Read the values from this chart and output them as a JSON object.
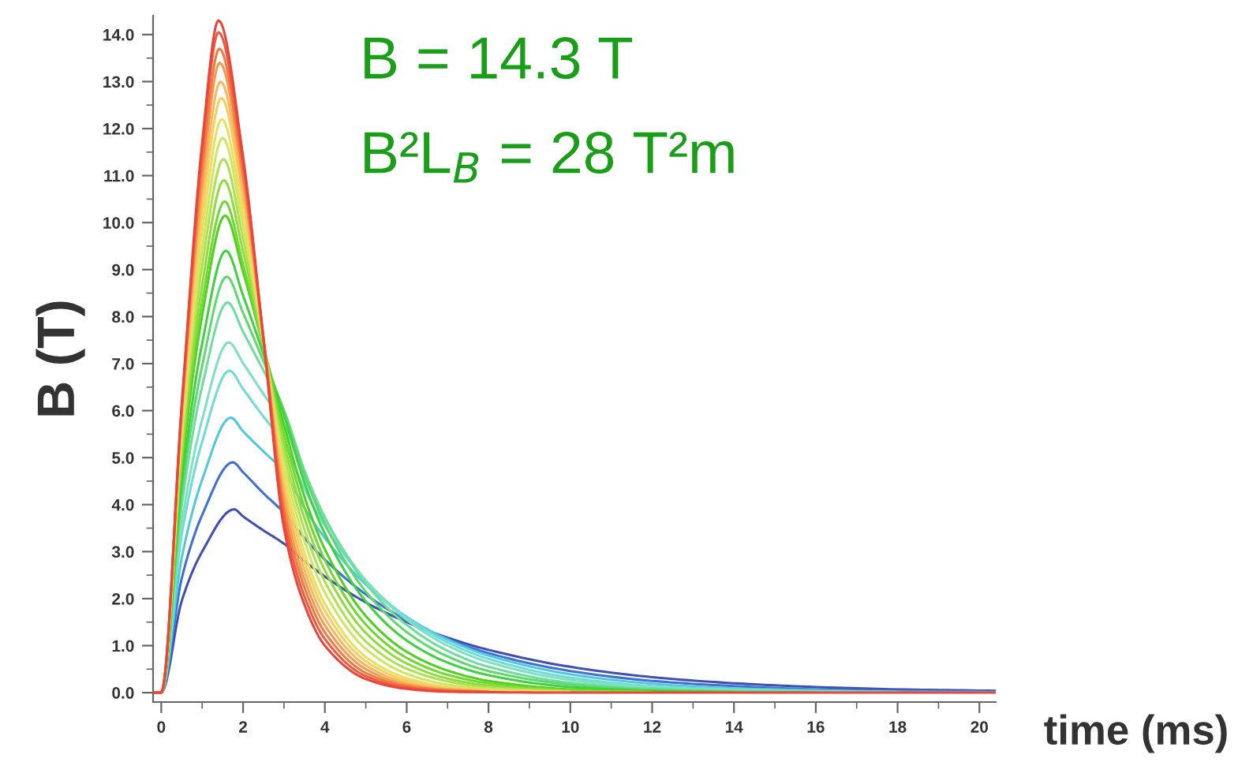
{
  "chart_data": {
    "type": "line",
    "xlabel": "time (ms)",
    "ylabel": "B (T)",
    "annotations": [
      "B = 14.3 T",
      "B²L$_{B}$ = 28 T²m"
    ],
    "xlim": [
      -0.2,
      20.4
    ],
    "ylim": [
      -0.2,
      14.4
    ],
    "xticks": [
      0,
      {
        "value": 1,
        "label": null
      },
      2,
      {
        "value": 3,
        "label": null
      },
      4,
      {
        "value": 5,
        "label": null
      },
      6,
      {
        "value": 7,
        "label": null
      },
      8,
      {
        "value": 9,
        "label": null
      },
      10,
      {
        "value": 11,
        "label": null
      },
      12,
      {
        "value": 13,
        "label": null
      },
      14,
      {
        "value": 15,
        "label": null
      },
      16,
      {
        "value": 17,
        "label": null
      },
      18,
      {
        "value": 19,
        "label": null
      },
      20
    ],
    "yticks": [
      {
        "value": 0,
        "label": "0.0"
      },
      {
        "value": 0.5,
        "label": null
      },
      {
        "value": 1,
        "label": "1.0"
      },
      {
        "value": 1.5,
        "label": null
      },
      {
        "value": 2,
        "label": "2.0"
      },
      {
        "value": 2.5,
        "label": null
      },
      {
        "value": 3,
        "label": "3.0"
      },
      {
        "value": 3.5,
        "label": null
      },
      {
        "value": 4,
        "label": "4.0"
      },
      {
        "value": 4.5,
        "label": null
      },
      {
        "value": 5,
        "label": "5.0"
      },
      {
        "value": 5.5,
        "label": null
      },
      {
        "value": 6,
        "label": "6.0"
      },
      {
        "value": 6.5,
        "label": null
      },
      {
        "value": 7,
        "label": "7.0"
      },
      {
        "value": 7.5,
        "label": null
      },
      {
        "value": 8,
        "label": "8.0"
      },
      {
        "value": 8.5,
        "label": null
      },
      {
        "value": 9,
        "label": "9.0"
      },
      {
        "value": 9.5,
        "label": null
      },
      {
        "value": 10,
        "label": "10.0"
      },
      {
        "value": 10.5,
        "label": null
      },
      {
        "value": 11,
        "label": "11.0"
      },
      {
        "value": 11.5,
        "label": null
      },
      {
        "value": 12,
        "label": "12.0"
      },
      {
        "value": 12.5,
        "label": null
      },
      {
        "value": 13,
        "label": "13.0"
      },
      {
        "value": 13.5,
        "label": null
      },
      {
        "value": 14,
        "label": "14.0"
      }
    ],
    "grid": false,
    "legend": false,
    "series": [
      {
        "color": "#e8453c",
        "x": [
          -0.2,
          0,
          0.5,
          1.0,
          1.4,
          2.0,
          2.5,
          3,
          3.5,
          4,
          5,
          6,
          7,
          8,
          10,
          12,
          14,
          16,
          18,
          20.4
        ],
        "values": [
          0,
          0,
          6.1,
          11.7,
          14.3,
          11.4,
          7.5,
          3.5,
          1.87,
          1.0,
          0.29,
          0.08,
          0.02,
          0.01,
          0,
          0,
          0,
          0,
          0,
          0
        ]
      },
      {
        "color": "#ee5a40",
        "x": [
          -0.2,
          0,
          0.5,
          1.0,
          1.4,
          2.0,
          2.5,
          3,
          3.5,
          4,
          5,
          6,
          7,
          8
        ],
        "values": [
          0,
          0,
          6.1,
          11.5,
          14.05,
          11.26,
          7.53,
          3.7,
          2.05,
          1.14,
          0.35,
          0.11,
          0.03,
          0.01
        ]
      },
      {
        "color": "#f07a40",
        "x": [
          -0.2,
          0,
          0.5,
          1.0,
          1.42,
          2.0,
          2.5,
          3,
          3.5,
          4,
          5,
          6,
          7,
          8
        ],
        "values": [
          0,
          0,
          6.03,
          11.17,
          13.7,
          11.05,
          7.53,
          3.9,
          2.24,
          1.28,
          0.42,
          0.14,
          0.05,
          0.02
        ]
      },
      {
        "color": "#f59a50",
        "x": [
          -0.2,
          0,
          0.5,
          1.0,
          1.43,
          2.0,
          2.5,
          3,
          3.5,
          4,
          5,
          6,
          7,
          8
        ],
        "values": [
          0,
          0,
          5.96,
          10.85,
          13.4,
          10.89,
          7.54,
          4.1,
          2.42,
          1.43,
          0.5,
          0.17,
          0.06,
          0.02
        ]
      },
      {
        "color": "#f8b860",
        "x": [
          -0.2,
          0,
          0.5,
          1.0,
          1.45,
          2.0,
          2.5,
          3,
          3.5,
          4,
          5,
          6,
          7,
          8
        ],
        "values": [
          0,
          0,
          5.85,
          10.53,
          13.0,
          10.65,
          7.52,
          4.3,
          2.61,
          1.58,
          0.58,
          0.21,
          0.08,
          0.03
        ]
      },
      {
        "color": "#f5d060",
        "x": [
          -0.2,
          0,
          0.5,
          1.0,
          1.47,
          2.0,
          2.5,
          3,
          3.5,
          4,
          5,
          6,
          7,
          8,
          10
        ],
        "values": [
          0,
          0,
          5.69,
          10.18,
          12.65,
          10.45,
          7.52,
          4.5,
          2.8,
          1.74,
          0.67,
          0.26,
          0.1,
          0.04,
          0.01
        ]
      },
      {
        "color": "#e8e060",
        "x": [
          -0.2,
          0,
          0.5,
          1.0,
          1.48,
          2.0,
          2.5,
          3,
          3.5,
          4,
          5,
          6,
          7,
          8,
          10
        ],
        "values": [
          0,
          0,
          5.55,
          9.82,
          12.2,
          10.17,
          7.47,
          4.7,
          2.98,
          1.89,
          0.76,
          0.31,
          0.12,
          0.05,
          0.01
        ]
      },
      {
        "color": "#cce860",
        "x": [
          -0.2,
          0,
          0.5,
          1.0,
          1.5,
          2.0,
          2.5,
          3,
          3.5,
          4,
          5,
          6,
          7,
          8,
          10
        ],
        "values": [
          0,
          0,
          5.43,
          9.44,
          11.8,
          9.94,
          7.45,
          4.9,
          3.23,
          2.13,
          0.93,
          0.4,
          0.17,
          0.08,
          0.01
        ]
      },
      {
        "color": "#b0e050",
        "x": [
          -0.2,
          0,
          0.5,
          1.0,
          1.52,
          2.0,
          2.5,
          3,
          3.5,
          4,
          5,
          6,
          7,
          8,
          10
        ],
        "values": [
          0,
          0,
          5.22,
          9.08,
          11.35,
          9.66,
          7.41,
          5.1,
          3.47,
          2.36,
          1.09,
          0.51,
          0.24,
          0.11,
          0.02
        ]
      },
      {
        "color": "#90dc40",
        "x": [
          -0.2,
          0,
          0.5,
          1.0,
          1.53,
          2.0,
          2.5,
          3,
          3.5,
          4,
          5,
          6,
          7,
          8,
          10,
          12
        ],
        "values": [
          0,
          0,
          5.07,
          8.67,
          10.9,
          9.39,
          7.37,
          5.3,
          3.71,
          2.6,
          1.27,
          0.62,
          0.3,
          0.15,
          0.04,
          0.01
        ]
      },
      {
        "color": "#70d830",
        "x": [
          -0.2,
          0,
          0.5,
          1.0,
          1.55,
          2.0,
          2.5,
          3,
          3.5,
          4,
          5,
          6,
          7,
          8,
          10,
          12
        ],
        "values": [
          0,
          0,
          4.91,
          8.31,
          10.45,
          9.11,
          7.33,
          5.5,
          3.94,
          2.82,
          1.45,
          0.74,
          0.38,
          0.2,
          0.05,
          0.01
        ]
      },
      {
        "color": "#50d020",
        "x": [
          -0.2,
          0,
          0.5,
          1.0,
          1.56,
          2.0,
          2.5,
          3,
          3.5,
          4,
          5,
          6,
          7,
          8,
          10,
          12,
          14
        ],
        "values": [
          0,
          0,
          4.77,
          8.02,
          10.15,
          8.95,
          7.35,
          5.7,
          4.17,
          3.05,
          1.63,
          0.87,
          0.47,
          0.25,
          0.07,
          0.02,
          0.01
        ]
      },
      {
        "color": "#40d040",
        "x": [
          -0.2,
          0,
          0.5,
          1.0,
          1.58,
          2.0,
          2.5,
          3,
          3.5,
          4,
          5,
          6,
          7,
          8,
          10,
          12,
          14
        ],
        "values": [
          0,
          0,
          4.47,
          7.43,
          9.4,
          8.45,
          7.2,
          5.9,
          4.47,
          3.38,
          1.94,
          1.11,
          0.64,
          0.37,
          0.12,
          0.04,
          0.01
        ]
      },
      {
        "color": "#60d870",
        "x": [
          -0.2,
          0,
          0.5,
          1.0,
          1.6,
          2.0,
          2.5,
          3,
          3.5,
          4,
          5,
          6,
          7,
          8,
          10,
          12,
          14,
          16
        ],
        "values": [
          0,
          0,
          4.25,
          6.95,
          8.85,
          8.08,
          7.05,
          6.0,
          4.64,
          3.59,
          2.15,
          1.29,
          0.77,
          0.46,
          0.17,
          0.06,
          0.02,
          0.01
        ]
      },
      {
        "color": "#70dca0",
        "x": [
          -0.2,
          0,
          0.5,
          1.0,
          1.62,
          2.0,
          2.5,
          3,
          3.5,
          4,
          5,
          6,
          7,
          8,
          10,
          12,
          14,
          16
        ],
        "values": [
          0,
          0,
          3.98,
          6.52,
          8.3,
          7.68,
          6.85,
          6.0,
          4.73,
          3.73,
          2.32,
          1.44,
          0.89,
          0.55,
          0.21,
          0.08,
          0.03,
          0.01
        ]
      },
      {
        "color": "#80e0c0",
        "x": [
          -0.2,
          0,
          0.5,
          1.0,
          1.65,
          2.0,
          2.5,
          3,
          3.5,
          4,
          5,
          6,
          7,
          8,
          10,
          12,
          14,
          16,
          18
        ],
        "values": [
          0,
          0,
          3.61,
          5.81,
          7.45,
          7.01,
          6.35,
          5.7,
          4.59,
          3.69,
          2.39,
          1.55,
          1.0,
          0.65,
          0.27,
          0.11,
          0.05,
          0.02,
          0.01
        ]
      },
      {
        "color": "#70dcd8",
        "x": [
          -0.2,
          0,
          0.5,
          1.0,
          1.67,
          2.0,
          2.5,
          3,
          3.5,
          4,
          5,
          6,
          7,
          8,
          10,
          12,
          14,
          16,
          18
        ],
        "values": [
          0,
          0,
          3.36,
          5.34,
          6.85,
          6.46,
          5.87,
          5.3,
          4.34,
          3.55,
          2.38,
          1.6,
          1.07,
          0.72,
          0.32,
          0.14,
          0.07,
          0.03,
          0.01
        ]
      },
      {
        "color": "#50c8e0",
        "x": [
          -0.2,
          0,
          0.5,
          1.0,
          1.7,
          2.0,
          2.5,
          3,
          3.5,
          4,
          5,
          6,
          7,
          8,
          10,
          12,
          14,
          16,
          18,
          20.4
        ],
        "values": [
          0,
          0,
          2.87,
          4.53,
          5.85,
          5.56,
          5.13,
          4.7,
          3.93,
          3.29,
          2.3,
          1.61,
          1.13,
          0.79,
          0.39,
          0.19,
          0.09,
          0.05,
          0.02,
          0.01
        ]
      },
      {
        "color": "#4070d0",
        "x": [
          -0.2,
          0,
          0.5,
          1.0,
          1.75,
          2.0,
          2.5,
          3,
          3.5,
          4,
          5,
          6,
          7,
          8,
          10,
          12,
          14,
          16,
          18,
          20.4
        ],
        "values": [
          0,
          0,
          2.43,
          3.78,
          4.9,
          4.69,
          4.24,
          3.83,
          3.29,
          2.83,
          2.09,
          1.54,
          1.14,
          0.84,
          0.46,
          0.25,
          0.14,
          0.07,
          0.04,
          0.02
        ]
      },
      {
        "color": "#4050b0",
        "x": [
          -0.2,
          0,
          0.5,
          1.0,
          1.78,
          2.0,
          2.5,
          3,
          3.5,
          4,
          5,
          6,
          7,
          8,
          10,
          12,
          14,
          16,
          18,
          20.4
        ],
        "values": [
          0,
          0,
          1.95,
          3.0,
          3.9,
          3.75,
          3.45,
          3.17,
          2.8,
          2.47,
          1.92,
          1.5,
          1.17,
          0.91,
          0.55,
          0.33,
          0.2,
          0.12,
          0.07,
          0.04
        ]
      }
    ]
  }
}
